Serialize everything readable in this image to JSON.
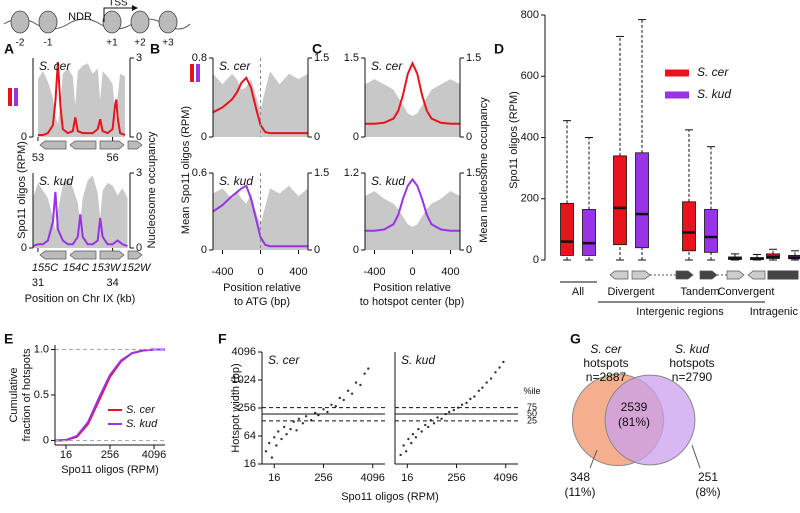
{
  "diagram": {
    "labels": [
      "-2",
      "-1",
      "+1",
      "+2",
      "+3"
    ],
    "ndr": "NDR",
    "tss": "TSS"
  },
  "chart_data": [
    {
      "type": "line",
      "panel": "A",
      "title": "S. cer",
      "ylabel": [
        "Spo11 oligos (RPM)"
      ],
      "y2label": [
        "Nucleosome occupancy"
      ],
      "x": [
        53.0,
        53.2,
        53.4,
        53.6,
        53.7,
        53.8,
        53.9,
        54.0,
        54.2,
        54.4,
        54.5,
        54.6,
        54.8,
        55.0,
        55.2,
        55.4,
        55.5,
        55.6,
        55.8,
        56.0,
        56.1,
        56.15,
        56.2,
        56.3,
        56.5
      ],
      "xlim": [
        52.8,
        56.7
      ],
      "xticks": [
        53,
        56
      ],
      "ylim": [
        0,
        2
      ],
      "yticks": [
        0
      ],
      "y2lim": [
        0,
        3
      ],
      "y2ticks": [
        0,
        3
      ],
      "series": [
        {
          "axis": "y2",
          "color": "#c8c8c8",
          "fill": true,
          "values": [
            2.2,
            2.5,
            2.1,
            1.5,
            0.8,
            0.5,
            1.2,
            2.4,
            2.6,
            2.3,
            1.2,
            2.5,
            2.7,
            2.8,
            2.4,
            2.6,
            1.4,
            2.5,
            2.3,
            2.0,
            1.0,
            0.6,
            1.5,
            2.4,
            2.3
          ]
        },
        {
          "color": "#e8141b",
          "values": [
            0.05,
            0.05,
            0.1,
            0.3,
            0.9,
            1.9,
            0.8,
            0.2,
            0.1,
            0.15,
            0.5,
            0.15,
            0.1,
            0.1,
            0.1,
            0.2,
            0.45,
            0.15,
            0.1,
            0.2,
            0.8,
            0.95,
            0.5,
            0.1,
            0.05
          ]
        }
      ]
    },
    {
      "type": "line",
      "title": "S. kud",
      "xlabel": [
        "Position on Chr IX (kb)"
      ],
      "genes": [
        "155C",
        "154C",
        "153W",
        "152W"
      ],
      "x": [
        30.8,
        31.0,
        31.2,
        31.4,
        31.6,
        31.7,
        31.8,
        32.0,
        32.2,
        32.4,
        32.6,
        32.7,
        32.8,
        33.0,
        33.2,
        33.4,
        33.5,
        33.6,
        33.8,
        34.0,
        34.2,
        34.4,
        34.6
      ],
      "xlim": [
        30.8,
        34.7
      ],
      "xticks": [
        31,
        34
      ],
      "ylim": [
        0,
        2
      ],
      "yticks": [
        0
      ],
      "y2lim": [
        0,
        3
      ],
      "y2ticks": [
        0,
        3
      ],
      "series": [
        {
          "axis": "y2",
          "color": "#c8c8c8",
          "fill": true,
          "values": [
            2.0,
            2.6,
            2.3,
            2.0,
            1.2,
            0.7,
            1.5,
            2.5,
            2.8,
            2.4,
            1.8,
            1.0,
            2.0,
            2.7,
            2.9,
            2.2,
            1.2,
            2.3,
            2.6,
            2.5,
            2.1,
            2.4,
            2.0
          ]
        },
        {
          "color": "#9933e6",
          "values": [
            0.05,
            0.1,
            0.1,
            0.2,
            0.7,
            1.5,
            0.5,
            0.2,
            0.1,
            0.1,
            0.3,
            0.9,
            0.3,
            0.1,
            0.1,
            0.2,
            0.8,
            0.3,
            0.1,
            0.1,
            0.2,
            0.1,
            0.05
          ]
        }
      ]
    },
    {
      "type": "line",
      "panel": "B",
      "title": "S. cer",
      "ylabel": [
        "Mean Spo11 oligos (RPM)"
      ],
      "vline": 0,
      "x": [
        -500,
        -400,
        -300,
        -250,
        -200,
        -150,
        -100,
        -50,
        0,
        50,
        100,
        200,
        300,
        400,
        500
      ],
      "xlim": [
        -500,
        500
      ],
      "ylim": [
        0,
        0.8
      ],
      "yticks": [
        0,
        0.8
      ],
      "y2lim": [
        0,
        1.5
      ],
      "y2ticks": [
        0,
        1.5
      ],
      "series": [
        {
          "axis": "y2",
          "color": "#c8c8c8",
          "fill": true,
          "values": [
            1.2,
            1.0,
            1.2,
            1.1,
            0.9,
            0.95,
            1.1,
            0.8,
            0.5,
            0.9,
            1.25,
            1.0,
            1.2,
            1.1,
            1.2
          ]
        },
        {
          "color": "#e8141b",
          "values": [
            0.25,
            0.3,
            0.38,
            0.45,
            0.55,
            0.6,
            0.5,
            0.3,
            0.12,
            0.05,
            0.04,
            0.04,
            0.04,
            0.04,
            0.04
          ]
        }
      ]
    },
    {
      "type": "line",
      "title": "S. kud",
      "xlabel": [
        "Position relative",
        "to ATG (bp)"
      ],
      "vline": 0,
      "x": [
        -500,
        -400,
        -300,
        -250,
        -200,
        -150,
        -100,
        -50,
        0,
        50,
        100,
        200,
        300,
        400,
        500
      ],
      "xlim": [
        -500,
        500
      ],
      "xticks": [
        -400,
        0,
        400
      ],
      "ylim": [
        0,
        0.6
      ],
      "yticks": [
        0,
        0.6
      ],
      "y2lim": [
        0,
        1.5
      ],
      "y2ticks": [
        0,
        1.5
      ],
      "series": [
        {
          "axis": "y2",
          "color": "#c8c8c8",
          "fill": true,
          "values": [
            1.1,
            1.2,
            1.0,
            1.15,
            1.0,
            0.9,
            1.1,
            0.75,
            0.5,
            0.85,
            1.2,
            1.1,
            1.25,
            1.05,
            1.2
          ]
        },
        {
          "color": "#9933e6",
          "values": [
            0.3,
            0.35,
            0.42,
            0.45,
            0.48,
            0.5,
            0.4,
            0.25,
            0.1,
            0.04,
            0.03,
            0.03,
            0.03,
            0.03,
            0.03
          ]
        }
      ]
    },
    {
      "type": "line",
      "panel": "C",
      "title": "S. cer",
      "y2label": [
        "Mean nucleosome occupancy"
      ],
      "x": [
        -500,
        -400,
        -300,
        -200,
        -150,
        -100,
        -50,
        0,
        50,
        100,
        150,
        200,
        300,
        400,
        500
      ],
      "xlim": [
        -500,
        500
      ],
      "ylim": [
        0,
        1.5
      ],
      "yticks": [
        0,
        1.5
      ],
      "y2lim": [
        0,
        1.5
      ],
      "y2ticks": [
        0,
        1.5
      ],
      "series": [
        {
          "axis": "y2",
          "color": "#c8c8c8",
          "fill": true,
          "values": [
            1.0,
            1.1,
            1.0,
            0.9,
            0.75,
            0.6,
            0.45,
            0.4,
            0.45,
            0.6,
            0.75,
            0.9,
            1.0,
            1.1,
            1.0
          ]
        },
        {
          "color": "#e8141b",
          "values": [
            0.25,
            0.25,
            0.27,
            0.35,
            0.5,
            0.8,
            1.2,
            1.4,
            1.2,
            0.8,
            0.5,
            0.35,
            0.27,
            0.25,
            0.25
          ]
        }
      ]
    },
    {
      "type": "line",
      "title": "S. kud",
      "xlabel": [
        "Position relative",
        "to hotspot center (bp)"
      ],
      "x": [
        -500,
        -400,
        -300,
        -200,
        -150,
        -100,
        -50,
        0,
        50,
        100,
        150,
        200,
        300,
        400,
        500
      ],
      "xlim": [
        -500,
        500
      ],
      "xticks": [
        -400,
        0,
        400
      ],
      "ylim": [
        0,
        1.2
      ],
      "yticks": [
        0,
        1.2
      ],
      "y2lim": [
        0,
        1.5
      ],
      "y2ticks": [
        0,
        1.5
      ],
      "series": [
        {
          "axis": "y2",
          "color": "#c8c8c8",
          "fill": true,
          "values": [
            1.05,
            1.15,
            1.0,
            0.9,
            0.8,
            0.65,
            0.5,
            0.45,
            0.5,
            0.65,
            0.8,
            0.9,
            1.0,
            1.15,
            1.05
          ]
        },
        {
          "color": "#9933e6",
          "values": [
            0.3,
            0.3,
            0.32,
            0.4,
            0.55,
            0.8,
            1.0,
            1.1,
            1.0,
            0.8,
            0.55,
            0.4,
            0.32,
            0.3,
            0.3
          ]
        }
      ]
    },
    {
      "type": "box",
      "panel": "D",
      "ylabel": [
        "Spo11 oligos (RPM)"
      ],
      "group_label": "Intergenic regions",
      "categories": [
        "All",
        "Divergent",
        "Tandem",
        "Convergent",
        "Intragenic"
      ],
      "ylim": [
        0,
        800
      ],
      "yticks": [
        0,
        200,
        400,
        600,
        800
      ],
      "legend": "upper right",
      "series": [
        {
          "name": "S. cer",
          "color": "#e8141b",
          "values": [
            [
              0,
              15,
              60,
              185,
              455
            ],
            [
              0,
              50,
              170,
              340,
              730
            ],
            [
              0,
              30,
              90,
              190,
              425
            ],
            [
              0,
              2,
              5,
              10,
              20
            ],
            [
              0,
              5,
              10,
              20,
              35
            ]
          ]
        },
        {
          "name": "S. kud",
          "color": "#9933e6",
          "values": [
            [
              0,
              15,
              55,
              165,
              400
            ],
            [
              0,
              40,
              150,
              350,
              785
            ],
            [
              0,
              25,
              75,
              165,
              370
            ],
            [
              0,
              2,
              4,
              8,
              18
            ],
            [
              0,
              4,
              8,
              15,
              30
            ]
          ]
        }
      ]
    },
    {
      "type": "line",
      "panel": "E",
      "ylabel": [
        "Cumulative",
        "fraction of hotspots"
      ],
      "xlabel": [
        "Spo11 oligos (RPM)"
      ],
      "log_x": 2,
      "x": [
        8,
        16,
        32,
        64,
        128,
        256,
        512,
        1024,
        2048,
        4096,
        8192
      ],
      "xlim": [
        8,
        8192
      ],
      "xticks": [
        16,
        256,
        4096
      ],
      "ylim": [
        -0.05,
        1.05
      ],
      "yticks": [
        0,
        0.5,
        {
          "value": 1,
          "label": "1.0"
        }
      ],
      "ref_lines": [
        0,
        1
      ],
      "legend": "lower right",
      "series": [
        {
          "name": "S. cer",
          "color": "#e8141b",
          "values": [
            0,
            0.004,
            0.04,
            0.18,
            0.44,
            0.7,
            0.87,
            0.96,
            0.99,
            1,
            1
          ]
        },
        {
          "name": "S. kud",
          "color": "#9933e6",
          "values": [
            0,
            0.005,
            0.05,
            0.2,
            0.47,
            0.72,
            0.88,
            0.96,
            0.99,
            1,
            1
          ]
        }
      ]
    },
    {
      "type": "scatter",
      "panel": "F",
      "title": "S. cer",
      "ylabel": [
        "Hotspot width (bp)"
      ],
      "xlabel": [
        "Spo11 oligos (RPM)"
      ],
      "log_x": 2,
      "log_y": 2,
      "xlim": [
        8,
        8192
      ],
      "xticks": [
        16,
        256,
        4096
      ],
      "ylim": [
        16,
        4096
      ],
      "yticks": [
        16,
        64,
        256,
        1024,
        4096
      ],
      "color": "#333333",
      "x": [
        10,
        12,
        14,
        16,
        18,
        20,
        24,
        28,
        32,
        40,
        48,
        56,
        64,
        80,
        96,
        128,
        160,
        192,
        256,
        320,
        400,
        512,
        640,
        800,
        1024,
        1280,
        1600,
        2048,
        2600,
        3200
      ],
      "values": [
        30,
        45,
        22,
        60,
        40,
        80,
        55,
        100,
        70,
        90,
        130,
        85,
        150,
        120,
        170,
        140,
        200,
        180,
        240,
        210,
        300,
        280,
        420,
        380,
        600,
        520,
        900,
        800,
        1400,
        1800
      ]
    },
    {
      "type": "scatter",
      "title": "S. kud",
      "log_x": 2,
      "log_y": 2,
      "xlim": [
        8,
        8192
      ],
      "xticks": [
        16,
        256,
        4096
      ],
      "ylim": [
        16,
        4096
      ],
      "color": "#333333",
      "x": [
        11,
        13,
        15,
        17,
        20,
        22,
        26,
        30,
        36,
        44,
        52,
        60,
        72,
        88,
        110,
        140,
        170,
        220,
        280,
        350,
        450,
        560,
        700,
        900,
        1100,
        1400,
        1800,
        2300,
        2900,
        3600
      ],
      "values": [
        25,
        40,
        30,
        55,
        45,
        70,
        60,
        90,
        80,
        110,
        100,
        140,
        120,
        160,
        150,
        190,
        210,
        230,
        260,
        300,
        330,
        400,
        450,
        600,
        700,
        900,
        1100,
        1500,
        1900,
        2500
      ],
      "percentile_header": "%ile",
      "percentiles": [
        {
          "value": 260,
          "label": "75",
          "style": "dashed"
        },
        {
          "value": 190,
          "label": "50",
          "style": "solid"
        },
        {
          "value": 135,
          "label": "25",
          "style": "dashed"
        }
      ]
    },
    {
      "type": "venn",
      "panel": "G",
      "sets": [
        {
          "name": "S. cer",
          "subtitle": "hotspots",
          "n": 2887,
          "n_label": "n=2887",
          "color": "#f4a582"
        },
        {
          "name": "S. kud",
          "subtitle": "hotspots",
          "n": 2790,
          "n_label": "n=2790",
          "color": "#c9a0ee"
        }
      ],
      "regions": [
        {
          "value": 348,
          "share": "(11%)"
        },
        {
          "value": 2539,
          "share": "(81%)"
        },
        {
          "value": 251,
          "share": "(8%)"
        }
      ]
    }
  ]
}
